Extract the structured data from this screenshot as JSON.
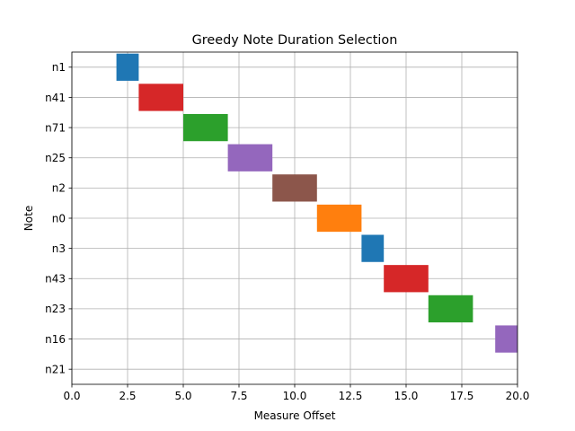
{
  "chart_data": {
    "type": "gantt",
    "title": "Greedy Note Duration Selection",
    "xlabel": "Measure Offset",
    "ylabel": "Note",
    "xlim": [
      0,
      20
    ],
    "x_ticks": [
      "0.0",
      "2.5",
      "5.0",
      "7.5",
      "10.0",
      "12.5",
      "15.0",
      "17.5",
      "20.0"
    ],
    "x_tick_values": [
      0,
      2.5,
      5,
      7.5,
      10,
      12.5,
      15,
      17.5,
      20
    ],
    "categories": [
      "n1",
      "n41",
      "n71",
      "n25",
      "n2",
      "n0",
      "n3",
      "n43",
      "n23",
      "n16",
      "n21"
    ],
    "grid": true,
    "bars": [
      {
        "note": "n1",
        "start": 2,
        "end": 3,
        "color": "#1f77b4"
      },
      {
        "note": "n41",
        "start": 3,
        "end": 5,
        "color": "#d62728"
      },
      {
        "note": "n71",
        "start": 5,
        "end": 7,
        "color": "#2ca02c"
      },
      {
        "note": "n25",
        "start": 7,
        "end": 9,
        "color": "#9467bd"
      },
      {
        "note": "n2",
        "start": 9,
        "end": 11,
        "color": "#8c564b"
      },
      {
        "note": "n0",
        "start": 11,
        "end": 13,
        "color": "#ff7f0e"
      },
      {
        "note": "n3",
        "start": 13,
        "end": 14,
        "color": "#1f77b4"
      },
      {
        "note": "n43",
        "start": 14,
        "end": 16,
        "color": "#d62728"
      },
      {
        "note": "n23",
        "start": 16,
        "end": 18,
        "color": "#2ca02c"
      },
      {
        "note": "n16",
        "start": 19,
        "end": 20,
        "color": "#9467bd"
      }
    ]
  }
}
